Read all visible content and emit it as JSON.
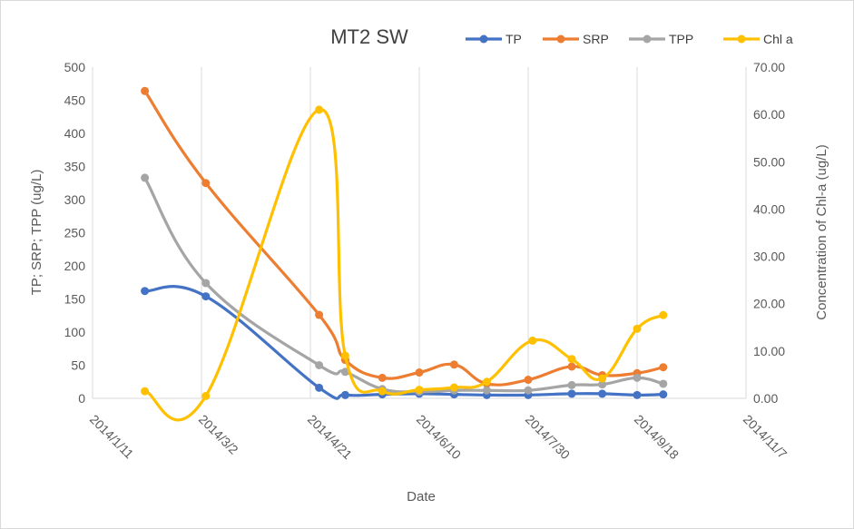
{
  "chart_data": {
    "type": "line",
    "title": "MT2 SW",
    "xlabel": "Date",
    "ylabel": "TP; SRP; TPP (ug/L)",
    "y2label": "Concentration of Chl-a (ug/L)",
    "ylim": [
      0,
      500
    ],
    "y2lim": [
      0,
      70
    ],
    "yticks": [
      "0",
      "50",
      "100",
      "150",
      "200",
      "250",
      "300",
      "350",
      "400",
      "450",
      "500"
    ],
    "y2ticks": [
      "0.00",
      "10.00",
      "20.00",
      "30.00",
      "40.00",
      "50.00",
      "60.00",
      "70.00"
    ],
    "xlim": [
      "2014/1/11",
      "2014/11/7"
    ],
    "xticks": [
      "2014/1/11",
      "2014/3/2",
      "2014/4/21",
      "2014/6/10",
      "2014/7/30",
      "2014/9/18",
      "2014/11/7"
    ],
    "grid": "vertical",
    "legend_position": "top-right",
    "smoothed": true,
    "series": [
      {
        "name": "TP",
        "axis": "left",
        "color": "#4472c4",
        "x": [
          "2014/2/4",
          "2014/3/4",
          "2014/4/25",
          "2014/5/7",
          "2014/5/24",
          "2014/6/10",
          "2014/6/26",
          "2014/7/11",
          "2014/7/30",
          "2014/8/19",
          "2014/9/2",
          "2014/9/18",
          "2014/9/30"
        ],
        "values": [
          162,
          154,
          16,
          5,
          6,
          7,
          6,
          5,
          5,
          7,
          7,
          5,
          6
        ]
      },
      {
        "name": "SRP",
        "axis": "left",
        "color": "#ed7d31",
        "x": [
          "2014/2/4",
          "2014/3/4",
          "2014/4/25",
          "2014/5/7",
          "2014/5/24",
          "2014/6/10",
          "2014/6/26",
          "2014/7/11",
          "2014/7/30",
          "2014/8/19",
          "2014/9/2",
          "2014/9/18",
          "2014/9/30"
        ],
        "values": [
          464,
          325,
          126,
          58,
          31,
          39,
          51,
          22,
          28,
          48,
          35,
          38,
          47
        ]
      },
      {
        "name": "TPP",
        "axis": "left",
        "color": "#a5a5a5",
        "x": [
          "2014/2/4",
          "2014/3/4",
          "2014/4/25",
          "2014/5/7",
          "2014/5/24",
          "2014/6/10",
          "2014/6/26",
          "2014/7/11",
          "2014/7/30",
          "2014/8/19",
          "2014/9/2",
          "2014/9/18",
          "2014/9/30"
        ],
        "values": [
          333,
          174,
          50,
          40,
          14,
          10,
          12,
          12,
          12,
          20,
          21,
          31,
          22
        ]
      },
      {
        "name": "Chl a",
        "axis": "right",
        "color": "#ffc000",
        "x": [
          "2014/2/4",
          "2014/3/4",
          "2014/4/25",
          "2014/5/7",
          "2014/5/24",
          "2014/6/10",
          "2014/6/26",
          "2014/7/11",
          "2014/8/1",
          "2014/8/19",
          "2014/9/2",
          "2014/9/18",
          "2014/9/30"
        ],
        "values": [
          1.5,
          0.5,
          61.0,
          9.0,
          1.5,
          1.8,
          2.3,
          3.5,
          12.2,
          8.3,
          4.2,
          14.7,
          17.6
        ]
      }
    ]
  }
}
